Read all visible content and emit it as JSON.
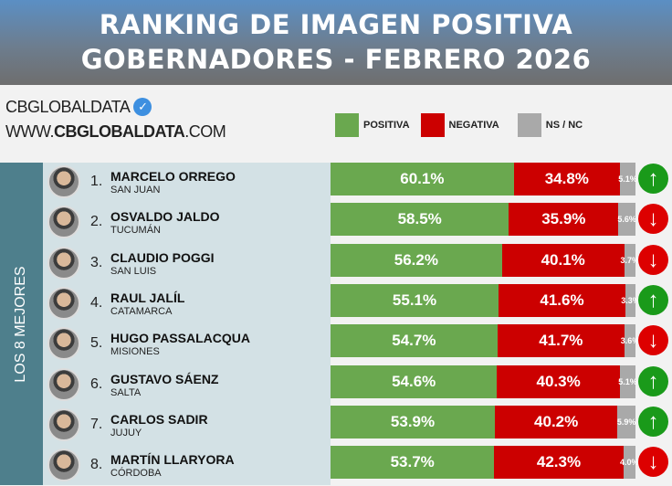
{
  "header": {
    "line1": "RANKING DE IMAGEN POSITIVA",
    "line2": "GOBERNADORES - FEBRERO 2026"
  },
  "brand": {
    "name": "CBGLOBALDATA",
    "url_prefix": "WWW.",
    "url_bold": "CBGLOBALDATA",
    "url_suffix": ".COM",
    "badge_icon": "verified-check-icon"
  },
  "side_label": "LOS 8 MEJORES",
  "colors": {
    "positiva": "#6aa84f",
    "negativa": "#cc0000",
    "nsnc": "#a9a9a9",
    "up": "#1a9a1a",
    "down": "#dd0000"
  },
  "chart_data": {
    "type": "bar",
    "stacked": true,
    "orientation": "horizontal",
    "legend": [
      "POSITIVA",
      "NEGATIVA",
      "NS / NC"
    ],
    "legend_position": "top",
    "rows": [
      {
        "rank": "1.",
        "name": "MARCELO ORREGO",
        "province": "SAN JUAN",
        "positiva": 60.1,
        "negativa": 34.8,
        "nsnc": 5.1,
        "trend": "up"
      },
      {
        "rank": "2.",
        "name": "OSVALDO JALDO",
        "province": "TUCUMÁN",
        "positiva": 58.5,
        "negativa": 35.9,
        "nsnc": 5.6,
        "trend": "down"
      },
      {
        "rank": "3.",
        "name": "CLAUDIO POGGI",
        "province": "SAN LUIS",
        "positiva": 56.2,
        "negativa": 40.1,
        "nsnc": 3.7,
        "trend": "down"
      },
      {
        "rank": "4.",
        "name": "RAUL JALÍL",
        "province": "CATAMARCA",
        "positiva": 55.1,
        "negativa": 41.6,
        "nsnc": 3.3,
        "trend": "up"
      },
      {
        "rank": "5.",
        "name": "HUGO PASSALACQUA",
        "province": "MISIONES",
        "positiva": 54.7,
        "negativa": 41.7,
        "nsnc": 3.6,
        "trend": "down"
      },
      {
        "rank": "6.",
        "name": "GUSTAVO SÁENZ",
        "province": "SALTA",
        "positiva": 54.6,
        "negativa": 40.3,
        "nsnc": 5.1,
        "trend": "up"
      },
      {
        "rank": "7.",
        "name": "CARLOS SADIR",
        "province": "JUJUY",
        "positiva": 53.9,
        "negativa": 40.2,
        "nsnc": 5.9,
        "trend": "up"
      },
      {
        "rank": "8.",
        "name": "MARTÍN LLARYORA",
        "province": "CÓRDOBA",
        "positiva": 53.7,
        "negativa": 42.3,
        "nsnc": 4.0,
        "trend": "down"
      }
    ]
  }
}
